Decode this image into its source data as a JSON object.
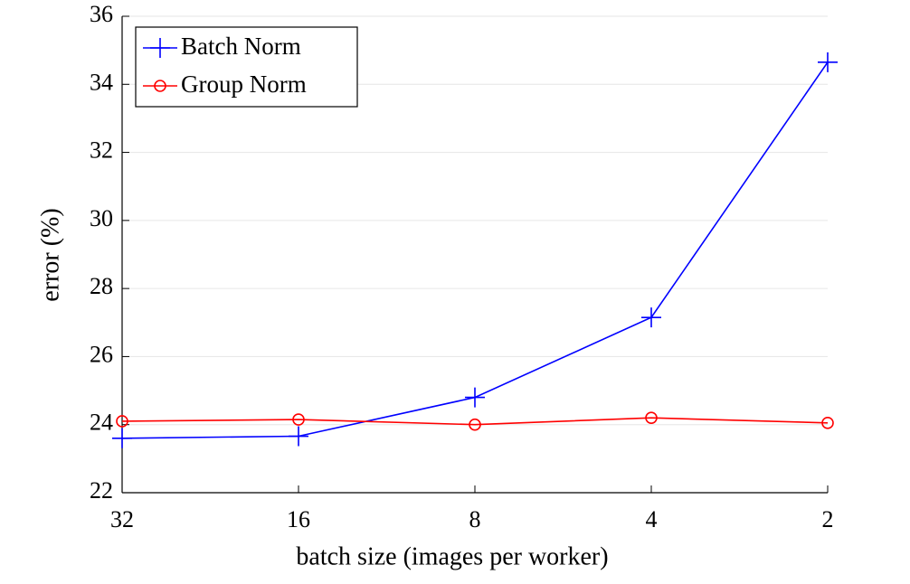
{
  "chart_data": {
    "type": "line",
    "xlabel": "batch size (images per worker)",
    "ylabel": "error (%)",
    "categories": [
      "32",
      "16",
      "8",
      "4",
      "2"
    ],
    "series": [
      {
        "name": "Batch Norm",
        "color": "#0000ff",
        "marker": "plus",
        "values": [
          23.6,
          23.66,
          24.8,
          27.15,
          34.65
        ]
      },
      {
        "name": "Group Norm",
        "color": "#ff0000",
        "marker": "circle",
        "values": [
          24.1,
          24.15,
          24.0,
          24.2,
          24.05
        ]
      }
    ],
    "ylim": [
      22,
      36
    ],
    "yticks": [
      22,
      24,
      26,
      28,
      30,
      32,
      34,
      36
    ],
    "grid": true,
    "legend": "upper-left"
  }
}
